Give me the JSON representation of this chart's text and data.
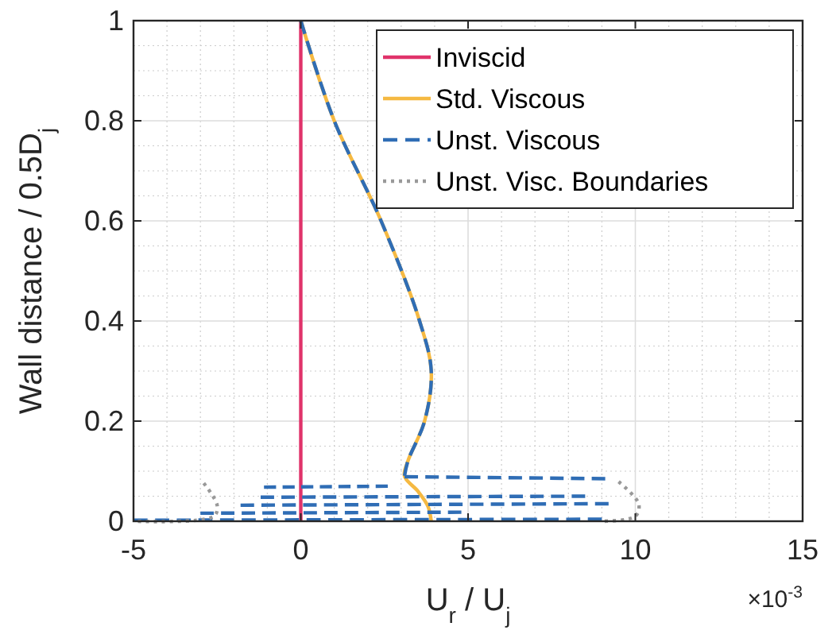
{
  "chart_data": {
    "type": "line",
    "xlabel": "U$_{r}$ / U$_{j}$",
    "ylabel": "Wall distance / 0.5D$_{j}$",
    "annotations": [
      "×10$^{-3}$"
    ],
    "xlim": [
      -5,
      15
    ],
    "xticks": [
      -5,
      0,
      5,
      10,
      15
    ],
    "ylim": [
      0,
      1
    ],
    "yticks": [
      0,
      0.2,
      0.4,
      0.6,
      0.8,
      1
    ],
    "grid": true,
    "legend": "top right",
    "series": [
      {
        "name": "Inviscid",
        "color": "#e0336a",
        "line_style": "solid",
        "x": [
          0,
          0
        ],
        "values": [
          0,
          1
        ]
      },
      {
        "name": "Std. Viscous",
        "color": "#f5b942",
        "line_style": "solid",
        "x": [
          0,
          1.0,
          2.4,
          3.55,
          3.9,
          3.7,
          3.2,
          3.1,
          3.5,
          3.8,
          3.9
        ],
        "values": [
          1,
          0.8,
          0.6,
          0.4,
          0.3,
          0.2,
          0.12,
          0.09,
          0.06,
          0.03,
          0
        ]
      },
      {
        "name": "Unst. Viscous",
        "color": "#2f6db5",
        "line_style": "dashed",
        "x": [
          0,
          1.0,
          2.4,
          3.55,
          3.9,
          3.7,
          3.2,
          3.1
        ],
        "values": [
          1,
          0.8,
          0.6,
          0.4,
          0.3,
          0.2,
          0.12,
          0.09
        ]
      },
      {
        "color": "#2f6db5",
        "line_style": "dashed",
        "x": [
          3.1,
          9.1
        ],
        "values": [
          0.089,
          0.085
        ]
      },
      {
        "color": "#2f6db5",
        "line_style": "dashed",
        "x": [
          -1.1,
          2.6
        ],
        "values": [
          0.068,
          0.07
        ]
      },
      {
        "color": "#2f6db5",
        "line_style": "dashed",
        "x": [
          -1.2,
          8.5
        ],
        "values": [
          0.048,
          0.05
        ]
      },
      {
        "color": "#2f6db5",
        "line_style": "dashed",
        "x": [
          -1.8,
          9.2
        ],
        "values": [
          0.032,
          0.035
        ]
      },
      {
        "color": "#2f6db5",
        "line_style": "dashed",
        "x": [
          -3,
          4.8
        ],
        "values": [
          0.016,
          0.018
        ]
      },
      {
        "color": "#2f6db5",
        "line_style": "dashed",
        "x": [
          -5,
          9
        ],
        "values": [
          0.002,
          0.004
        ]
      },
      {
        "name": "Unst. Visc. Boundaries",
        "color": "#999999",
        "line_style": "dotted",
        "x": [
          -2.9,
          -2.5,
          -2.6,
          -5,
          null,
          9.5,
          10.1,
          10,
          9
        ],
        "values": [
          0.076,
          0.032,
          0.01,
          0,
          null,
          0.079,
          0.035,
          0.01,
          0
        ]
      }
    ]
  }
}
